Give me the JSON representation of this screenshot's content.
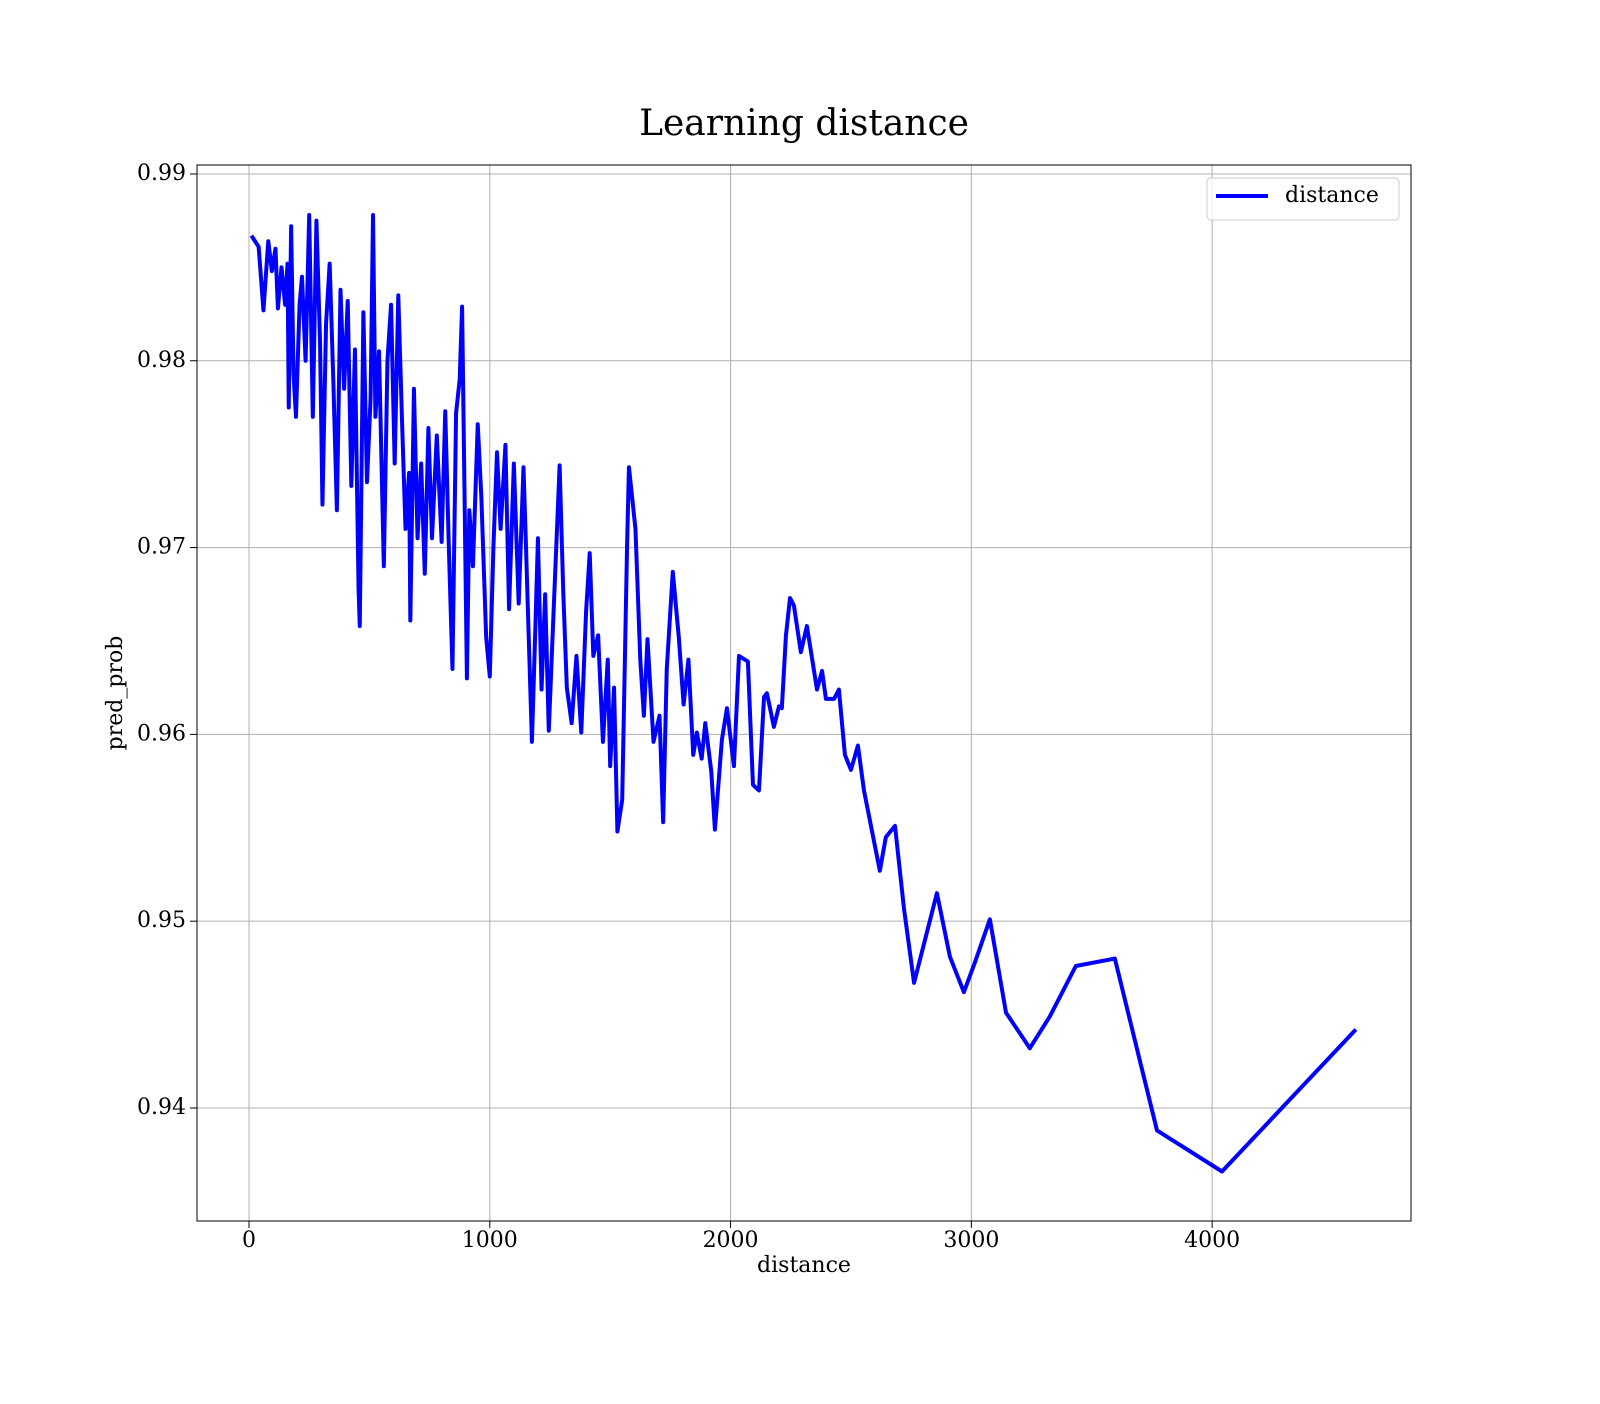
{
  "chart_data": {
    "type": "line",
    "title": "Learning distance",
    "xlabel": "distance",
    "ylabel": "pred_prob",
    "x": [
      10,
      40,
      60,
      80,
      95,
      110,
      120,
      135,
      150,
      160,
      165,
      175,
      185,
      195,
      210,
      220,
      235,
      250,
      265,
      280,
      295,
      305,
      320,
      335,
      350,
      365,
      380,
      395,
      410,
      425,
      440,
      455,
      460,
      475,
      490,
      505,
      515,
      525,
      540,
      560,
      575,
      590,
      605,
      620,
      635,
      650,
      665,
      670,
      685,
      700,
      715,
      730,
      745,
      760,
      780,
      800,
      815,
      830,
      845,
      860,
      875,
      885,
      905,
      915,
      930,
      950,
      965,
      985,
      1000,
      1015,
      1030,
      1045,
      1065,
      1080,
      1100,
      1120,
      1140,
      1150,
      1175,
      1190,
      1200,
      1215,
      1230,
      1245,
      1260,
      1290,
      1305,
      1320,
      1340,
      1360,
      1380,
      1400,
      1415,
      1430,
      1450,
      1470,
      1490,
      1500,
      1516,
      1530,
      1550,
      1570,
      1578,
      1605,
      1625,
      1640,
      1655,
      1680,
      1705,
      1720,
      1735,
      1760,
      1785,
      1805,
      1825,
      1845,
      1860,
      1880,
      1895,
      1920,
      1935,
      1964,
      1985,
      2014,
      2035,
      2072,
      2093,
      2118,
      2139,
      2151,
      2180,
      2201,
      2213,
      2230,
      2247,
      2263,
      2292,
      2317,
      2359,
      2380,
      2396,
      2430,
      2450,
      2475,
      2500,
      2529,
      2554,
      2620,
      2645,
      2683,
      2720,
      2762,
      2857,
      2911,
      2969,
      3015,
      3077,
      3144,
      3243,
      3326,
      3434,
      3596,
      3771,
      4041,
      4597
    ],
    "series": [
      {
        "name": "distance",
        "color": "#0000ff",
        "values": [
          0.9867,
          0.9861,
          0.9827,
          0.9864,
          0.9848,
          0.986,
          0.9828,
          0.985,
          0.983,
          0.9852,
          0.9775,
          0.9872,
          0.9793,
          0.977,
          0.983,
          0.9845,
          0.98,
          0.9878,
          0.977,
          0.9875,
          0.981,
          0.9723,
          0.982,
          0.9852,
          0.979,
          0.972,
          0.9838,
          0.9785,
          0.9832,
          0.9733,
          0.9806,
          0.9678,
          0.9658,
          0.9826,
          0.9735,
          0.978,
          0.9878,
          0.977,
          0.9805,
          0.969,
          0.98,
          0.983,
          0.9745,
          0.9835,
          0.977,
          0.971,
          0.974,
          0.9661,
          0.9785,
          0.9705,
          0.9745,
          0.9686,
          0.9764,
          0.9705,
          0.976,
          0.9703,
          0.9773,
          0.97,
          0.9635,
          0.9772,
          0.979,
          0.9829,
          0.963,
          0.972,
          0.969,
          0.9766,
          0.9727,
          0.9652,
          0.9631,
          0.97,
          0.9751,
          0.971,
          0.9755,
          0.9667,
          0.9745,
          0.967,
          0.9743,
          0.9702,
          0.9596,
          0.966,
          0.9705,
          0.9624,
          0.9675,
          0.9602,
          0.965,
          0.9744,
          0.9677,
          0.9625,
          0.9606,
          0.9642,
          0.9601,
          0.9666,
          0.9697,
          0.9642,
          0.9653,
          0.9596,
          0.964,
          0.9583,
          0.9625,
          0.9548,
          0.9565,
          0.97,
          0.9743,
          0.971,
          0.964,
          0.961,
          0.9651,
          0.9596,
          0.961,
          0.9553,
          0.9635,
          0.9687,
          0.9652,
          0.9616,
          0.964,
          0.9589,
          0.9601,
          0.9587,
          0.9606,
          0.958,
          0.9549,
          0.9597,
          0.9614,
          0.9583,
          0.9642,
          0.9639,
          0.9573,
          0.957,
          0.962,
          0.9622,
          0.9604,
          0.9615,
          0.9614,
          0.9653,
          0.9673,
          0.9669,
          0.9644,
          0.9658,
          0.9624,
          0.9634,
          0.9619,
          0.9619,
          0.9624,
          0.9589,
          0.9581,
          0.9594,
          0.957,
          0.9527,
          0.9545,
          0.9551,
          0.9507,
          0.9467,
          0.9515,
          0.9481,
          0.9462,
          0.9478,
          0.9501,
          0.9451,
          0.9432,
          0.9449,
          0.9476,
          0.948,
          0.9388,
          0.9366,
          0.9442
        ]
      }
    ],
    "xlim": [
      -216,
      4826
    ],
    "ylim": [
      0.93395,
      0.99048
    ],
    "xticks": [
      0,
      1000,
      2000,
      3000,
      4000
    ],
    "yticks": [
      0.94,
      0.95,
      0.96,
      0.97,
      0.98,
      0.99
    ],
    "grid": true,
    "legend": "upper right"
  }
}
